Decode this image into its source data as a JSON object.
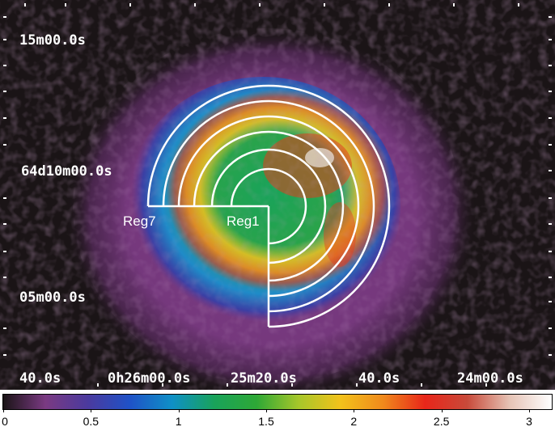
{
  "image": {
    "description_colors": {
      "background": "#1a1416",
      "halo": "#7a3a82",
      "outline": "#ffffff"
    },
    "ra_labels": [
      "40.0s",
      "0h26m00.0s",
      "25m20.0s",
      "40.0s",
      "24m00.0s"
    ],
    "dec_labels": [
      "15m00.0s",
      "64d10m00.0s",
      "05m00.0s"
    ],
    "regions": {
      "inner": "Reg1",
      "outer": "Reg7"
    }
  },
  "colorbar": {
    "min": 0,
    "max": 3,
    "ticks": [
      "0",
      "0.5",
      "1",
      "1.5",
      "2",
      "2.5",
      "3"
    ],
    "stops": [
      "#1a1416",
      "#7a3a82",
      "#4b3a9e",
      "#1f52c7",
      "#0f90c6",
      "#19a35a",
      "#2ea836",
      "#a6c72a",
      "#f2c21b",
      "#f08a1c",
      "#e8261a",
      "#c84a3a",
      "#e6c3b5",
      "#ffffff"
    ]
  }
}
